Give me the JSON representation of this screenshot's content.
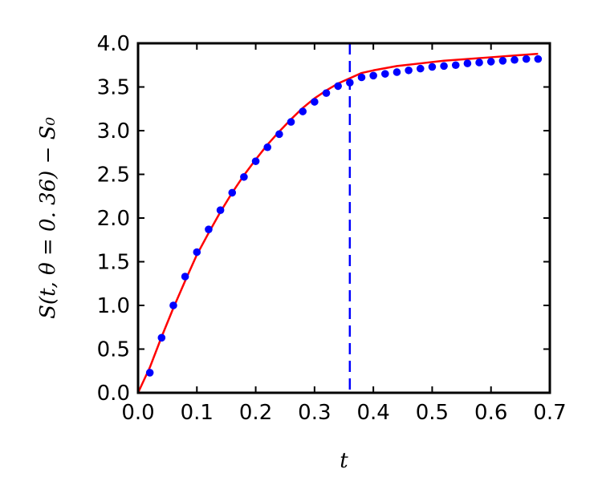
{
  "chart_data": {
    "type": "line",
    "title": "",
    "xlabel": "t",
    "ylabel": "S(t, θ = 0. 36) − S₀",
    "xlim": [
      0.0,
      0.7
    ],
    "ylim": [
      0.0,
      4.0
    ],
    "x_ticks": [
      "0.0",
      "0.1",
      "0.2",
      "0.3",
      "0.4",
      "0.5",
      "0.6",
      "0.7"
    ],
    "y_ticks": [
      "0.0",
      "0.5",
      "1.0",
      "1.5",
      "2.0",
      "2.5",
      "3.0",
      "3.5",
      "4.0"
    ],
    "grid": false,
    "vertical_line": {
      "x": 0.36,
      "color": "#0000ff",
      "style": "dashed"
    },
    "series": [
      {
        "kind": "line",
        "color": "#ff0000",
        "x": [
          0.0,
          0.02,
          0.04,
          0.06,
          0.08,
          0.1,
          0.12,
          0.14,
          0.16,
          0.18,
          0.2,
          0.22,
          0.24,
          0.26,
          0.28,
          0.3,
          0.32,
          0.34,
          0.36,
          0.38,
          0.4,
          0.44,
          0.48,
          0.52,
          0.56,
          0.6,
          0.64,
          0.68
        ],
        "y": [
          0.0,
          0.29,
          0.64,
          0.97,
          1.28,
          1.58,
          1.83,
          2.07,
          2.29,
          2.49,
          2.67,
          2.84,
          2.99,
          3.13,
          3.26,
          3.37,
          3.46,
          3.54,
          3.6,
          3.66,
          3.69,
          3.74,
          3.77,
          3.8,
          3.82,
          3.84,
          3.86,
          3.88
        ]
      },
      {
        "kind": "scatter",
        "color": "#0000ff",
        "x": [
          0.02,
          0.04,
          0.06,
          0.08,
          0.1,
          0.12,
          0.14,
          0.16,
          0.18,
          0.2,
          0.22,
          0.24,
          0.26,
          0.28,
          0.3,
          0.32,
          0.34,
          0.36,
          0.38,
          0.4,
          0.42,
          0.44,
          0.46,
          0.48,
          0.5,
          0.52,
          0.54,
          0.56,
          0.58,
          0.6,
          0.62,
          0.64,
          0.66,
          0.68
        ],
        "y": [
          0.23,
          0.63,
          1.0,
          1.33,
          1.61,
          1.87,
          2.09,
          2.29,
          2.47,
          2.65,
          2.81,
          2.96,
          3.1,
          3.22,
          3.33,
          3.43,
          3.51,
          3.55,
          3.61,
          3.63,
          3.65,
          3.67,
          3.69,
          3.71,
          3.73,
          3.74,
          3.75,
          3.77,
          3.78,
          3.79,
          3.8,
          3.81,
          3.82,
          3.82
        ]
      }
    ]
  }
}
